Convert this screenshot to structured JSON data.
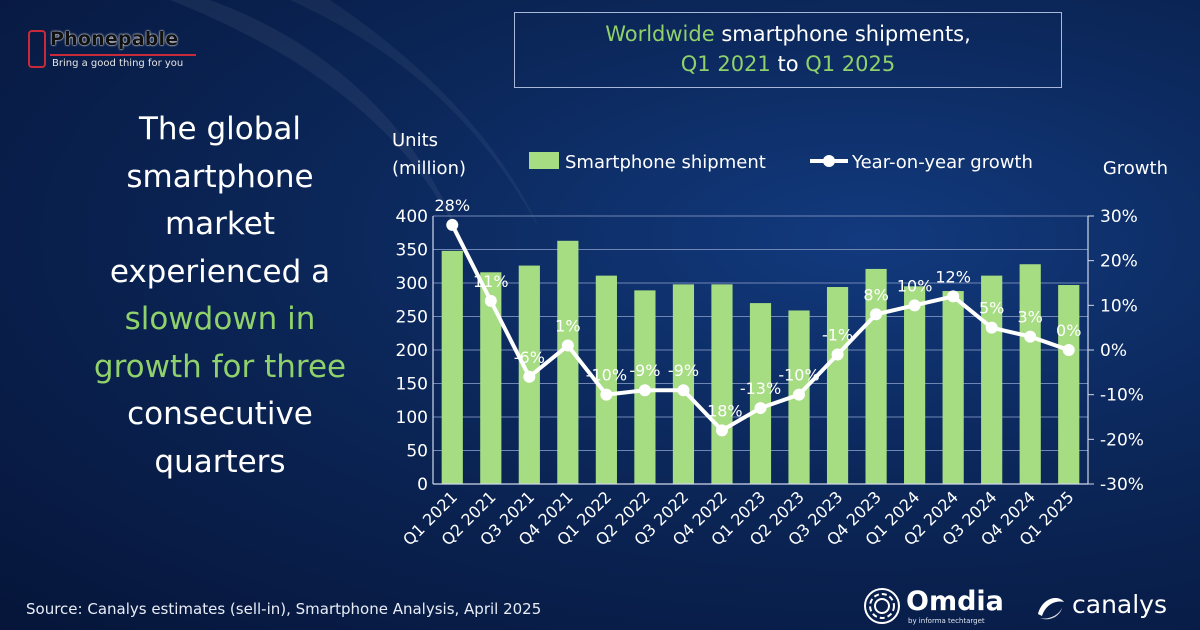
{
  "brand": {
    "name": "Phonepable",
    "tagline": "Bring a good thing for you",
    "accent": "#c82a3a"
  },
  "headline": {
    "lines": [
      {
        "text": "The global",
        "green": false
      },
      {
        "text": "smartphone",
        "green": false
      },
      {
        "text": "market",
        "green": false
      },
      {
        "text": "experienced a",
        "green": false
      },
      {
        "text": "slowdown in",
        "green": true
      },
      {
        "text": "growth for three",
        "green": true
      },
      {
        "text": "consecutive",
        "green": false
      },
      {
        "text": "quarters",
        "green": false
      }
    ]
  },
  "title": {
    "line1_hl": "Worldwide",
    "line1_rest": " smartphone shipments,",
    "from": "Q1 2021",
    "connector": " to ",
    "to": "Q1 2025"
  },
  "source": "Source: Canalys estimates (sell-in), Smartphone Analysis, April 2025",
  "logos": {
    "omdia": "Omdia",
    "omdia_sub": "by informa techtarget",
    "canalys": "canalys"
  },
  "chart_data": {
    "type": "bar",
    "categories": [
      "Q1 2021",
      "Q2 2021",
      "Q3 2021",
      "Q4 2021",
      "Q1 2022",
      "Q2 2022",
      "Q3 2022",
      "Q4 2022",
      "Q1 2023",
      "Q2 2023",
      "Q3 2023",
      "Q4 2023",
      "Q1 2024",
      "Q2 2024",
      "Q3 2024",
      "Q4 2024",
      "Q1 2025"
    ],
    "series": [
      {
        "name": "Smartphone shipment",
        "type": "bar",
        "axis": "left",
        "values": [
          348,
          316,
          326,
          363,
          311,
          289,
          298,
          298,
          270,
          259,
          294,
          321,
          295,
          288,
          311,
          328,
          297
        ]
      },
      {
        "name": "Year-on-year growth",
        "type": "line",
        "axis": "right",
        "values": [
          28,
          11,
          -6,
          1,
          -10,
          -9,
          -9,
          -18,
          -13,
          -10,
          -1,
          8,
          10,
          12,
          5,
          3,
          0
        ],
        "labels": [
          "28%",
          "11%",
          "-6%",
          "1%",
          "-10%",
          "-9%",
          "-9%",
          "-18%",
          "-13%",
          "-10%",
          "-1%",
          "8%",
          "10%",
          "12%",
          "5%",
          "3%",
          "0%"
        ]
      }
    ],
    "ylabel": "Units\n(million)",
    "ylabel_lines": [
      "Units",
      "(million)"
    ],
    "y2label": "Growth",
    "ylim": [
      0,
      400
    ],
    "y2lim": [
      -30,
      30
    ],
    "yticks": [
      0,
      50,
      100,
      150,
      200,
      250,
      300,
      350,
      400
    ],
    "y2ticks": [
      "-30%",
      "-20%",
      "-10%",
      "0%",
      "10%",
      "20%",
      "30%"
    ],
    "grid": true,
    "legend": "top",
    "colors": {
      "bar": "#a6dc82",
      "line": "#ffffff",
      "grid": "#6f86b4"
    }
  }
}
